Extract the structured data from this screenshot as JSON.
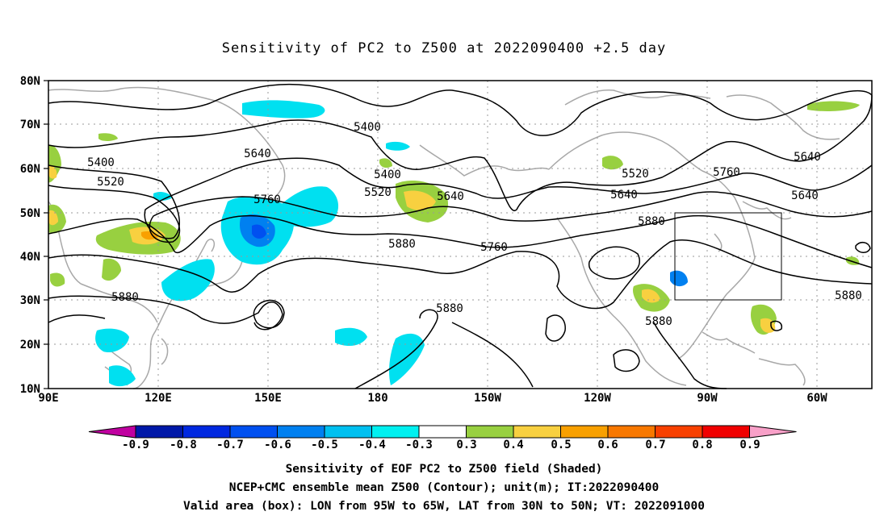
{
  "title": "Sensitivity of PC2 to Z500 at 2022090400 +2.5 day",
  "lat_labels": [
    "80N",
    "70N",
    "60N",
    "50N",
    "40N",
    "30N",
    "20N",
    "10N"
  ],
  "lon_labels": [
    "90E",
    "120E",
    "150E",
    "180",
    "150W",
    "120W",
    "90W",
    "60W"
  ],
  "contour_labels": [
    "5400",
    "5400",
    "5400",
    "5520",
    "5520",
    "5520",
    "5640",
    "5640",
    "5640",
    "5640",
    "5760",
    "5760",
    "5760",
    "5880",
    "5880",
    "5880",
    "5880",
    "5880",
    "5880"
  ],
  "colorbar": {
    "labels": [
      "-0.9",
      "-0.8",
      "-0.7",
      "-0.6",
      "-0.5",
      "-0.4",
      "-0.3",
      "0.3",
      "0.4",
      "0.5",
      "0.6",
      "0.7",
      "0.8",
      "0.9"
    ],
    "colors": [
      "#c000a0",
      "#0018a8",
      "#0028e0",
      "#0050f0",
      "#0080f0",
      "#00c0f0",
      "#00f0f0",
      "#ffffff",
      "#98d040",
      "#f8d040",
      "#f8a000",
      "#f87800",
      "#f84000",
      "#f00000",
      "#f8a0c8"
    ]
  },
  "box": {
    "label": "Valid area",
    "lon_w": "95W",
    "lon_e": "65W",
    "lat_s": "30N",
    "lat_n": "50N"
  },
  "captions": {
    "line1": "Sensitivity of EOF PC2 to Z500 field (Shaded)",
    "line2": "NCEP+CMC ensemble mean Z500 (Contour); unit(m); IT:2022090400",
    "line3": "Valid area (box): LON from 95W to 65W, LAT from 30N to 50N; VT: 2022091000"
  }
}
